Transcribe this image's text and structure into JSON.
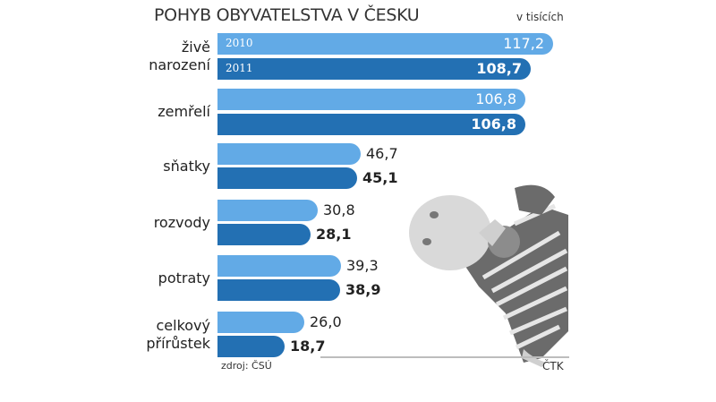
{
  "chart_data": {
    "type": "bar",
    "orientation": "horizontal",
    "title": "POHYB OBYVATELSTVA V ČESKU",
    "unit": "v tisících",
    "categories": [
      "živě narození",
      "zemřelí",
      "sňatky",
      "rozvody",
      "potraty",
      "celkový přírůstek"
    ],
    "series": [
      {
        "name": "2010",
        "color": "#62aae6",
        "values": [
          117.2,
          106.8,
          46.7,
          30.8,
          39.3,
          26.0
        ]
      },
      {
        "name": "2011",
        "color": "#2370b3",
        "values": [
          108.7,
          106.8,
          45.1,
          28.1,
          38.9,
          18.7
        ]
      }
    ],
    "labels_2010": [
      "117,2",
      "106,8",
      "46,7",
      "30,8",
      "39,3",
      "26,0"
    ],
    "labels_2011": [
      "108,7",
      "106,8",
      "45,1",
      "28,1",
      "38,9",
      "18,7"
    ],
    "source": "zdroj: ČSÚ",
    "credit": "ČTK",
    "grid": false,
    "legend": "inline in first bars (2010, 2011)"
  },
  "header": {
    "title": "POHYB OBYVATELSTVA V ČESKU",
    "unit": "v tisících"
  },
  "categories": [
    {
      "line1": "živě",
      "line2": "narození"
    },
    {
      "line1": "zemřelí"
    },
    {
      "line1": "sňatky"
    },
    {
      "line1": "rozvody"
    },
    {
      "line1": "potraty"
    },
    {
      "line1": "celkový",
      "line2": "přírůstek"
    }
  ],
  "legend": {
    "y2010": "2010",
    "y2011": "2011"
  },
  "footer": {
    "source": "zdroj: ČSÚ",
    "credit": "ČTK"
  },
  "image": {
    "description": "baby in striped shirt (grayscale photo)"
  }
}
